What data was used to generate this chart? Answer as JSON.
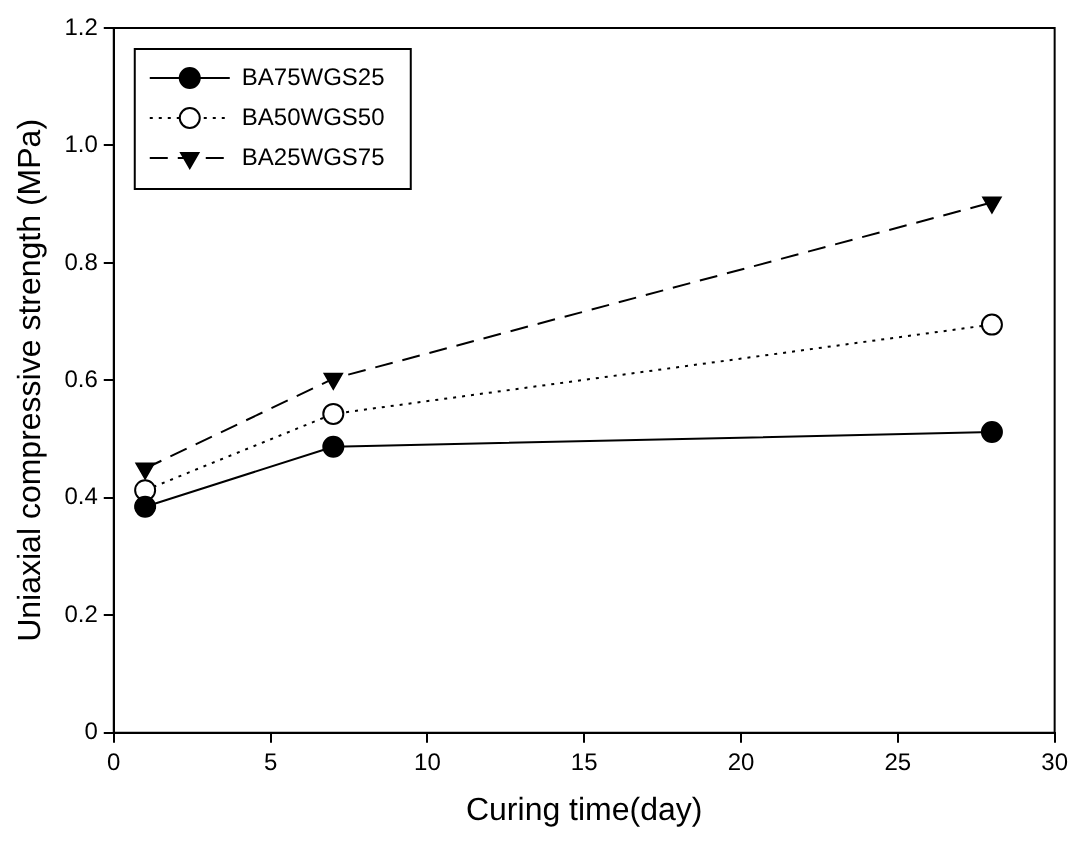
{
  "chart_data": {
    "type": "line",
    "xlabel": "Curing time(day)",
    "ylabel": "Uniaxial compressive strength (MPa)",
    "x": [
      1,
      7,
      28
    ],
    "series": [
      {
        "name": "BA75WGS25",
        "color": "#000000",
        "values": [
          0.385,
          0.487,
          0.512
        ],
        "marker": "circle",
        "line_style": "solid"
      },
      {
        "name": "BA50WGS50",
        "color": "#000000",
        "values": [
          0.413,
          0.543,
          0.695
        ],
        "marker": "circle",
        "colors": [
          "#ffffff",
          "#ffffff",
          "#ffffff"
        ],
        "line_style": "dotted"
      },
      {
        "name": "BA25WGS75",
        "color": "#000000",
        "values": [
          0.45,
          0.603,
          0.903
        ],
        "marker": "triangle",
        "line_style": "dashed"
      }
    ],
    "xlim": [
      0,
      30
    ],
    "xticks": [
      0,
      5,
      10,
      15,
      20,
      25,
      30
    ],
    "ylim": [
      0,
      1.2
    ],
    "yticks": [
      0,
      {
        "value": 0.2,
        "label": "0.2"
      },
      {
        "value": 0.4,
        "label": "0.4"
      },
      {
        "value": 0.6,
        "label": "0.6"
      },
      {
        "value": 0.8,
        "label": "0.8"
      },
      {
        "value": 1,
        "label": "1.0"
      },
      {
        "value": 1.2,
        "label": "1.2"
      }
    ],
    "grid": false,
    "legend": "top left"
  }
}
